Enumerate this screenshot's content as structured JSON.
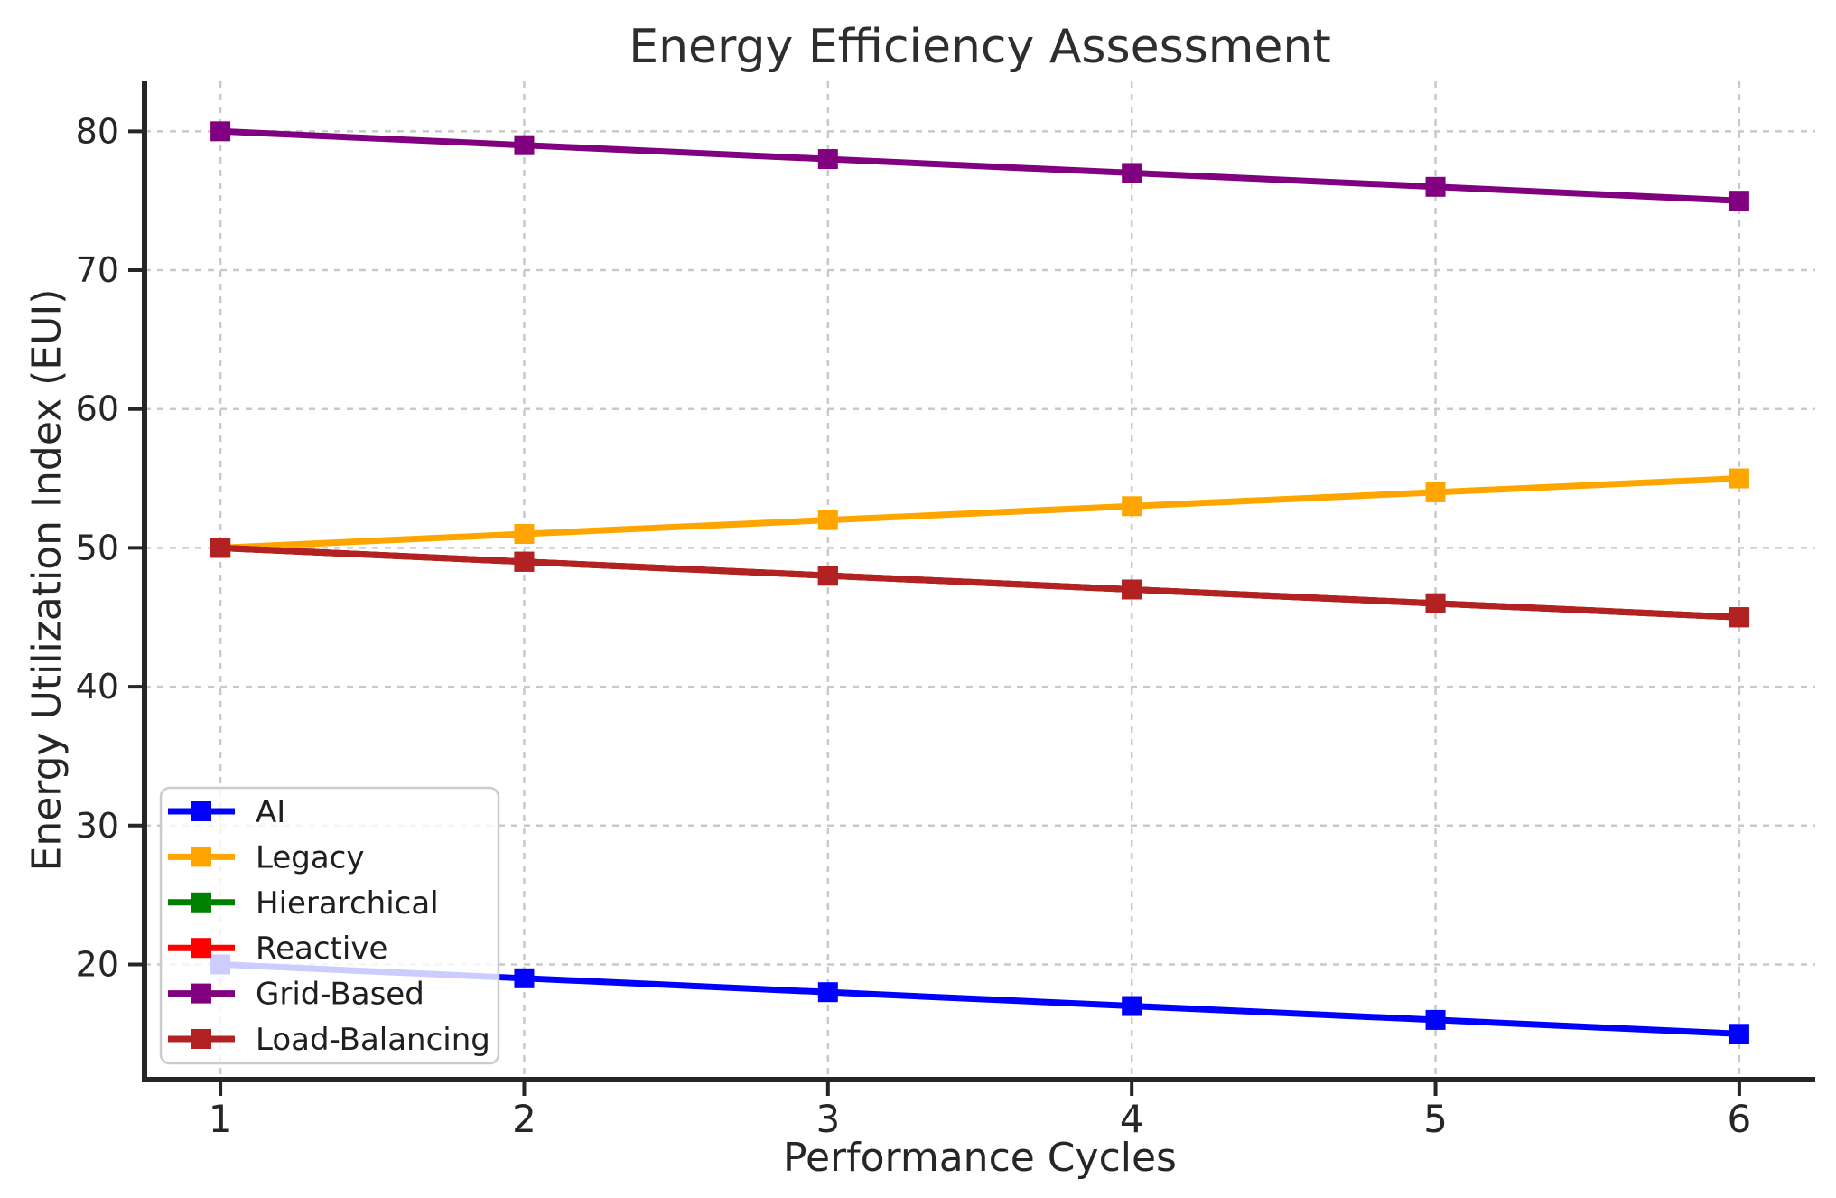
{
  "chart_data": {
    "type": "line",
    "title": "Energy Efficiency Assessment",
    "xlabel": "Performance Cycles",
    "ylabel": "Energy Utilization Index (EUI)",
    "x": [
      1,
      2,
      3,
      4,
      5,
      6
    ],
    "series": [
      {
        "name": "AI",
        "color": "#0000ff",
        "values": [
          20,
          19,
          18,
          17,
          16,
          15
        ]
      },
      {
        "name": "Legacy",
        "color": "#ffa500",
        "values": [
          50,
          51,
          52,
          53,
          54,
          55
        ]
      },
      {
        "name": "Hierarchical",
        "color": "#008000",
        "values": [
          50,
          49,
          48,
          47,
          46,
          45
        ],
        "overlapped_not_visible": true
      },
      {
        "name": "Reactive",
        "color": "#ff0000",
        "values": [
          50,
          49,
          48,
          47,
          46,
          45
        ],
        "overlapped_not_visible": true
      },
      {
        "name": "Grid-Based",
        "color": "#800080",
        "values": [
          80,
          79,
          78,
          77,
          76,
          75
        ]
      },
      {
        "name": "Load-Balancing",
        "color": "#b22222",
        "values": [
          50,
          49,
          48,
          47,
          46,
          45
        ]
      }
    ],
    "xticks": [
      "1",
      "2",
      "3",
      "4",
      "5",
      "6"
    ],
    "yticks": [
      "20",
      "30",
      "40",
      "50",
      "60",
      "70",
      "80"
    ],
    "xlim": [
      0.75,
      6.25
    ],
    "ylim": [
      11.7,
      83.6
    ],
    "grid": true,
    "grid_style": "dashed",
    "marker": "square",
    "legend": {
      "position": "lower left",
      "labels": [
        "AI",
        "Legacy",
        "Hierarchical",
        "Reactive",
        "Grid-Based",
        "Load-Balancing"
      ]
    }
  },
  "colors": {
    "background": "#ffffff",
    "spine": "#262626",
    "tick": "#262626",
    "tick_label": "#262626",
    "grid": "#c9c9c9",
    "title": "#2e2e2e",
    "axis_label": "#262626",
    "legend_border": "#cccccc",
    "legend_text": "#1f1f1f"
  }
}
